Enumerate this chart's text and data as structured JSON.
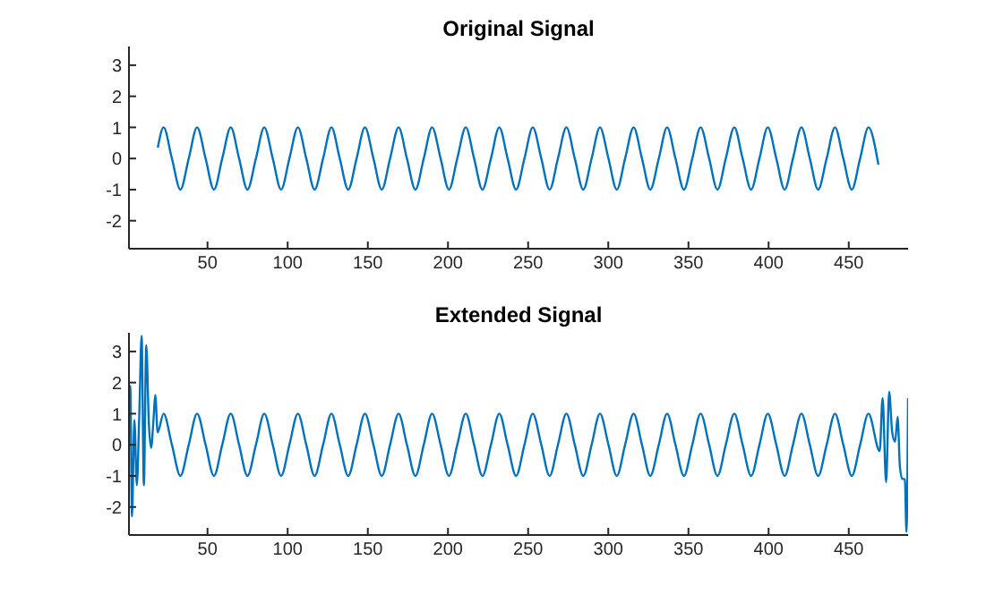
{
  "chart_data": [
    {
      "type": "line",
      "title": "Original Signal",
      "color": "#0072bd",
      "xlim": [
        1,
        487
      ],
      "ylim": [
        -2.9,
        3.6
      ],
      "xticks": [
        50,
        100,
        150,
        200,
        250,
        300,
        350,
        400,
        450
      ],
      "yticks": [
        -2,
        -1,
        0,
        1,
        2,
        3
      ],
      "x": [
        19,
        22.6,
        27.8,
        33.1,
        38.3,
        43.5,
        48.8,
        54.0,
        59.2,
        64.5,
        69.7,
        74.9,
        80.2,
        85.4,
        90.7,
        95.9,
        101.1,
        106.4,
        111.6,
        116.8,
        122.1,
        127.3,
        132.5,
        137.8,
        143.0,
        148.2,
        153.5,
        158.7,
        163.9,
        169.2,
        174.4,
        179.7,
        184.9,
        190.1,
        195.4,
        200.6,
        205.8,
        211.1,
        216.3,
        221.5,
        226.8,
        232.0,
        237.2,
        242.5,
        247.7,
        252.9,
        258.2,
        263.4,
        268.6,
        273.9,
        279.1,
        284.4,
        289.6,
        294.8,
        300.1,
        305.3,
        310.5,
        315.8,
        321.0,
        326.2,
        331.5,
        336.7,
        341.9,
        347.2,
        352.4,
        357.6,
        362.9,
        368.1,
        373.3,
        378.6,
        383.8,
        389.1,
        394.3,
        399.5,
        404.8,
        410.0,
        415.2,
        420.5,
        425.7,
        430.9,
        436.2,
        441.4,
        446.6,
        451.9,
        457.1,
        462.3,
        468.5
      ],
      "values": [
        0.35,
        1,
        0,
        -1,
        0,
        1,
        0,
        -1,
        0,
        1,
        0,
        -1,
        0,
        1,
        0,
        -1,
        0,
        1,
        0,
        -1,
        0,
        1,
        0,
        -1,
        0,
        1,
        0,
        -1,
        0,
        1,
        0,
        -1,
        0,
        1,
        0,
        -1,
        0,
        1,
        0,
        -1,
        0,
        1,
        0,
        -1,
        0,
        1,
        0,
        -1,
        0,
        1,
        0,
        -1,
        0,
        1,
        0,
        -1,
        0,
        1,
        0,
        -1,
        0,
        1,
        0,
        -1,
        0,
        1,
        0,
        -1,
        0,
        1,
        0,
        -1,
        0,
        1,
        0,
        -1,
        0,
        1,
        0,
        -1,
        0,
        1,
        0,
        -1,
        0,
        1,
        -0.2
      ]
    },
    {
      "type": "line",
      "title": "Extended Signal",
      "color": "#0072bd",
      "xlim": [
        1,
        487
      ],
      "ylim": [
        -2.9,
        3.6
      ],
      "xticks": [
        50,
        100,
        150,
        200,
        250,
        300,
        350,
        400,
        450
      ],
      "yticks": [
        -2,
        -1,
        0,
        1,
        2,
        3
      ],
      "x": [
        1,
        1.8,
        2.9,
        4.4,
        5.9,
        7.4,
        8.9,
        10.3,
        11.8,
        13.4,
        14.8,
        16.3,
        17.4,
        18.9,
        22.6,
        27.8,
        33.1,
        38.3,
        43.5,
        48.8,
        54.0,
        59.2,
        64.5,
        69.7,
        74.9,
        80.2,
        85.4,
        90.7,
        95.9,
        101.1,
        106.4,
        111.6,
        116.8,
        122.1,
        127.3,
        132.5,
        137.8,
        143.0,
        148.2,
        153.5,
        158.7,
        163.9,
        169.2,
        174.4,
        179.7,
        184.9,
        190.1,
        195.4,
        200.6,
        205.8,
        211.1,
        216.3,
        221.5,
        226.8,
        232.0,
        237.2,
        242.5,
        247.7,
        252.9,
        258.2,
        263.4,
        268.6,
        273.9,
        279.1,
        284.4,
        289.6,
        294.8,
        300.1,
        305.3,
        310.5,
        315.8,
        321.0,
        326.2,
        331.5,
        336.7,
        341.9,
        347.2,
        352.4,
        357.6,
        362.9,
        368.1,
        373.3,
        378.6,
        383.8,
        389.1,
        394.3,
        399.5,
        404.8,
        410.0,
        415.2,
        420.5,
        425.7,
        430.9,
        436.2,
        441.4,
        446.6,
        451.9,
        457.1,
        462.3,
        469.3,
        471.1,
        473.3,
        475.2,
        477.1,
        478.9,
        480.5,
        481.9,
        483.4,
        485,
        486,
        487
      ],
      "values": [
        0.6,
        1.9,
        -2.3,
        0.8,
        -1.3,
        0.9,
        3.5,
        -1.3,
        3.2,
        0.7,
        -0.1,
        0.8,
        1.6,
        0.4,
        1,
        0,
        -1,
        0,
        1,
        0,
        -1,
        0,
        1,
        0,
        -1,
        0,
        1,
        0,
        -1,
        0,
        1,
        0,
        -1,
        0,
        1,
        0,
        -1,
        0,
        1,
        0,
        -1,
        0,
        1,
        0,
        -1,
        0,
        1,
        0,
        -1,
        0,
        1,
        0,
        -1,
        0,
        1,
        0,
        -1,
        0,
        1,
        0,
        -1,
        0,
        1,
        0,
        -1,
        0,
        1,
        0,
        -1,
        0,
        1,
        0,
        -1,
        0,
        1,
        0,
        -1,
        0,
        1,
        0,
        -1,
        0,
        1,
        0,
        -1,
        0,
        1,
        0,
        -1,
        0,
        1,
        0,
        -1,
        0,
        1,
        0,
        -1,
        0,
        1,
        -0.2,
        1.5,
        -1.2,
        1.7,
        0.4,
        0.1,
        0.9,
        -0.7,
        -1.1,
        -1.1,
        -2.8,
        1.5
      ]
    }
  ]
}
